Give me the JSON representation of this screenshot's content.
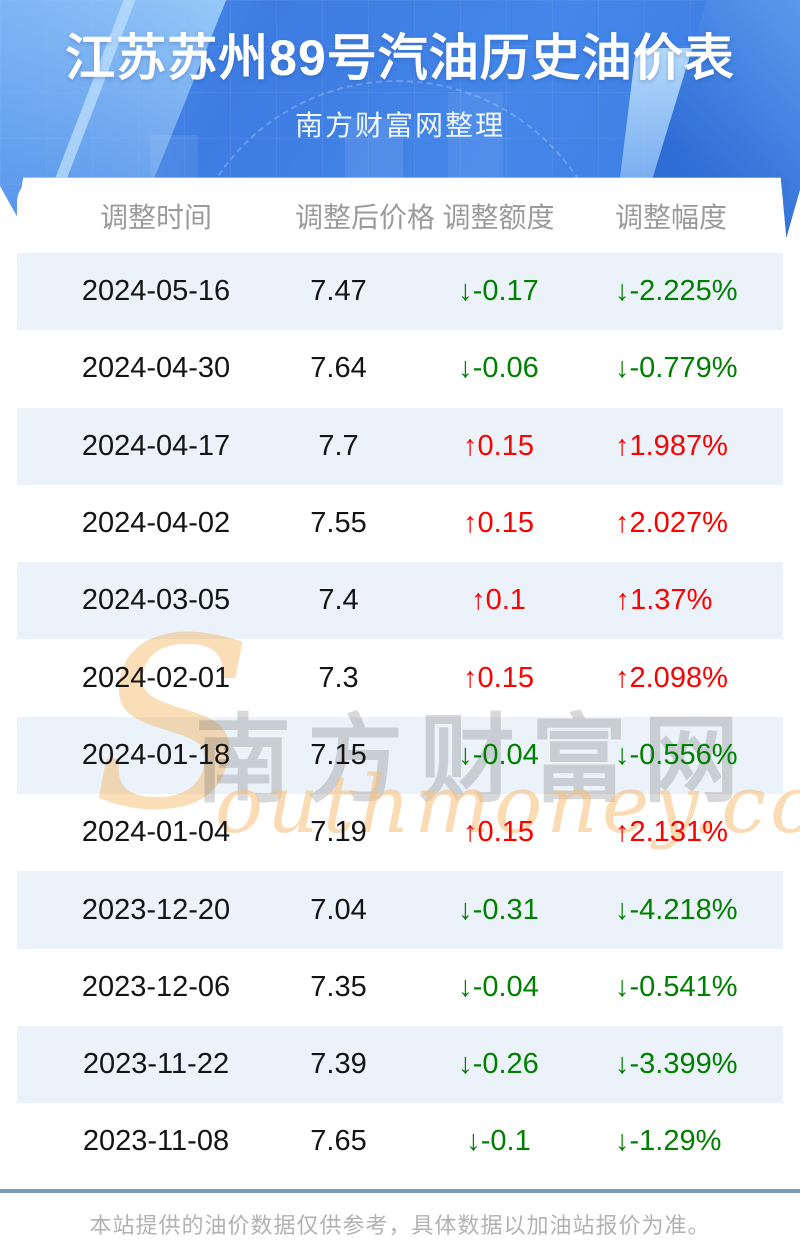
{
  "page": {
    "title": "江苏苏州89号汽油历史油价表",
    "subtitle": "南方财富网整理"
  },
  "table": {
    "columns": [
      {
        "key": "date",
        "label": "调整时间"
      },
      {
        "key": "price",
        "label": "调整后价格"
      },
      {
        "key": "change",
        "label": "调整额度"
      },
      {
        "key": "percent",
        "label": "调整幅度"
      }
    ],
    "rows": [
      {
        "date": "2024-05-16",
        "price": "7.47",
        "change": "↓-0.17",
        "percent": "↓-2.225%",
        "direction": "down"
      },
      {
        "date": "2024-04-30",
        "price": "7.64",
        "change": "↓-0.06",
        "percent": "↓-0.779%",
        "direction": "down"
      },
      {
        "date": "2024-04-17",
        "price": "7.7",
        "change": "↑0.15",
        "percent": "↑1.987%",
        "direction": "up"
      },
      {
        "date": "2024-04-02",
        "price": "7.55",
        "change": "↑0.15",
        "percent": "↑2.027%",
        "direction": "up"
      },
      {
        "date": "2024-03-05",
        "price": "7.4",
        "change": "↑0.1",
        "percent": "↑1.37%",
        "direction": "up"
      },
      {
        "date": "2024-02-01",
        "price": "7.3",
        "change": "↑0.15",
        "percent": "↑2.098%",
        "direction": "up"
      },
      {
        "date": "2024-01-18",
        "price": "7.15",
        "change": "↓-0.04",
        "percent": "↓-0.556%",
        "direction": "down"
      },
      {
        "date": "2024-01-04",
        "price": "7.19",
        "change": "↑0.15",
        "percent": "↑2.131%",
        "direction": "up"
      },
      {
        "date": "2023-12-20",
        "price": "7.04",
        "change": "↓-0.31",
        "percent": "↓-4.218%",
        "direction": "down"
      },
      {
        "date": "2023-12-06",
        "price": "7.35",
        "change": "↓-0.04",
        "percent": "↓-0.541%",
        "direction": "down"
      },
      {
        "date": "2023-11-22",
        "price": "7.39",
        "change": "↓-0.26",
        "percent": "↓-3.399%",
        "direction": "down"
      },
      {
        "date": "2023-11-08",
        "price": "7.65",
        "change": "↓-0.1",
        "percent": "↓-1.29%",
        "direction": "down"
      }
    ]
  },
  "chart_data": {
    "type": "table",
    "title": "江苏苏州89号汽油历史油价表",
    "subtitle": "南方财富网整理",
    "columns": [
      "调整时间",
      "调整后价格",
      "调整额度",
      "调整幅度"
    ],
    "rows": [
      [
        "2024-05-16",
        7.47,
        -0.17,
        -2.225
      ],
      [
        "2024-04-30",
        7.64,
        -0.06,
        -0.779
      ],
      [
        "2024-04-17",
        7.7,
        0.15,
        1.987
      ],
      [
        "2024-04-02",
        7.55,
        0.15,
        2.027
      ],
      [
        "2024-03-05",
        7.4,
        0.1,
        1.37
      ],
      [
        "2024-02-01",
        7.3,
        0.15,
        2.098
      ],
      [
        "2024-01-18",
        7.15,
        -0.04,
        -0.556
      ],
      [
        "2024-01-04",
        7.19,
        0.15,
        2.131
      ],
      [
        "2023-12-20",
        7.04,
        -0.31,
        -4.218
      ],
      [
        "2023-12-06",
        7.35,
        -0.04,
        -0.541
      ],
      [
        "2023-11-22",
        7.39,
        -0.26,
        -3.399
      ],
      [
        "2023-11-08",
        7.65,
        -0.1,
        -1.29
      ]
    ],
    "percent_unit": "%"
  },
  "watermark": {
    "initial": "S",
    "cn": "南方财富网",
    "en": "outhmoney.com"
  },
  "footer": {
    "note": "本站提供的油价数据仅供参考，具体数据以加油站报价为准。"
  },
  "colors": {
    "up": "#fe0000",
    "down": "#008000",
    "stripe": "#ebf2fa",
    "divider": "#7f9ab9",
    "header_text": "#9b9b9b",
    "banner_blue": "#4486e9"
  }
}
